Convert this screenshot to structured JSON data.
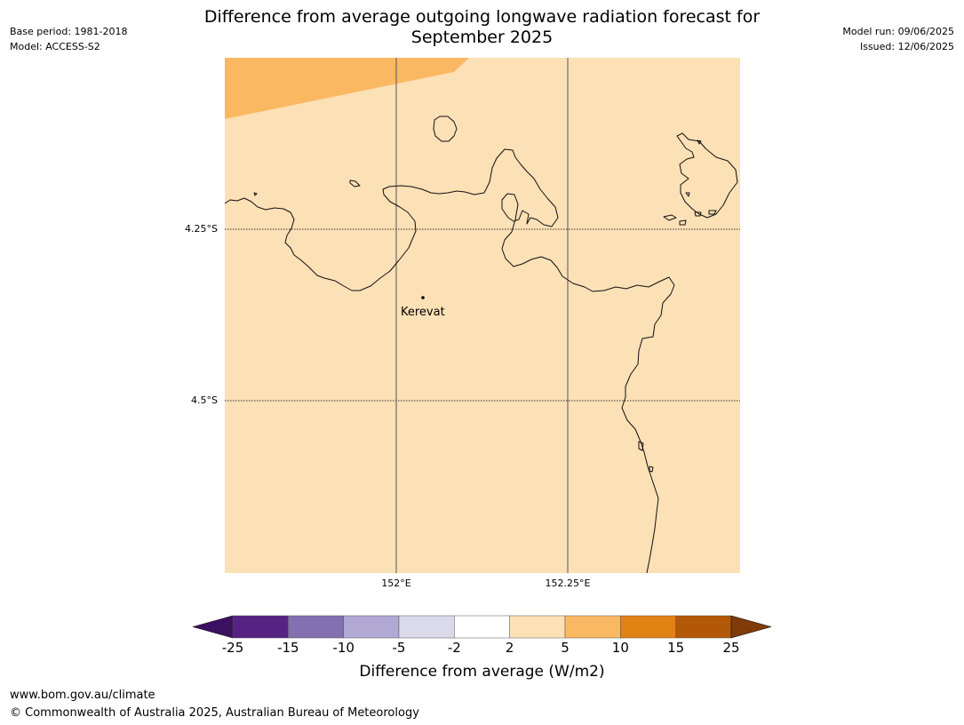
{
  "header": {
    "title_line1": "Difference from average outgoing longwave radiation forecast for",
    "title_line2": "September 2025",
    "base_period": "Base period: 1981-2018",
    "model": "Model: ACCESS-S2",
    "model_run": "Model run: 09/06/2025",
    "issued": "Issued: 12/06/2025"
  },
  "map": {
    "background_color": "#fce0b6",
    "anomaly_patch_color": "#fbb863",
    "coastline_color": "#000000",
    "grid_color": "#555555",
    "lat_ticks": [
      "4.25°S",
      "4.5°S"
    ],
    "lon_ticks": [
      "152°E",
      "152.25°E"
    ],
    "place": {
      "name": "Kerevat"
    }
  },
  "legend": {
    "title": "Difference from average (W/m2)",
    "labels": [
      "-25",
      "-15",
      "-10",
      "-5",
      "-2",
      "2",
      "5",
      "10",
      "15",
      "25"
    ],
    "colors": [
      "#3c1060",
      "#562385",
      "#8270b0",
      "#b1a8d3",
      "#dadaeb",
      "#ffffff",
      "#fce0b6",
      "#fbb863",
      "#e08214",
      "#b35806",
      "#7f3b08"
    ]
  },
  "footer": {
    "url": "www.bom.gov.au/climate",
    "copyright": "© Commonwealth of Australia 2025, Australian Bureau of Meteorology"
  }
}
